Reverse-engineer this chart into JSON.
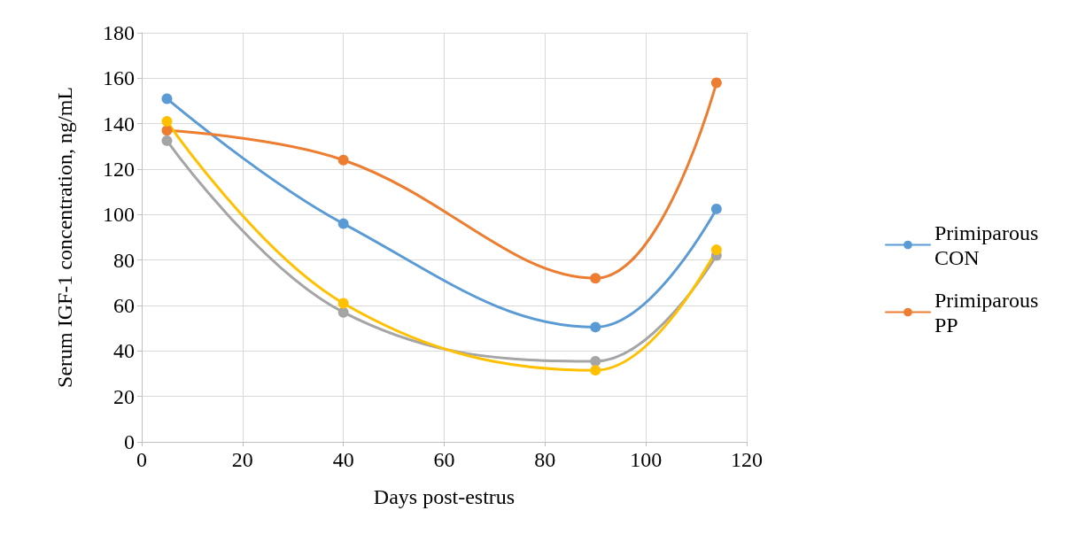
{
  "chart_data": {
    "type": "line",
    "xlabel": "Days post-estrus",
    "ylabel": "Serum IGF-1 concentration, ng/mL",
    "x": [
      5,
      40,
      90,
      114
    ],
    "series": [
      {
        "name": "Primiparous CON",
        "color": "#5b9bd5",
        "values": [
          151,
          96,
          50.5,
          102.5
        ]
      },
      {
        "name": "Primiparous PP",
        "color": "#ed7d31",
        "values": [
          137,
          124,
          72,
          158
        ]
      },
      {
        "color": "#a5a5a5",
        "values": [
          132.5,
          57,
          35.5,
          82
        ]
      },
      {
        "color": "#ffc000",
        "values": [
          141,
          61,
          31.5,
          84.5
        ]
      }
    ],
    "xlim": [
      0,
      120
    ],
    "xticks": [
      0,
      20,
      40,
      60,
      80,
      100,
      120
    ],
    "ylim": [
      0,
      180
    ],
    "yticks": [
      0,
      20,
      40,
      60,
      80,
      100,
      120,
      140,
      160,
      180
    ],
    "grid": true,
    "legend": "right",
    "marker": "circle",
    "line_style": "solid"
  }
}
